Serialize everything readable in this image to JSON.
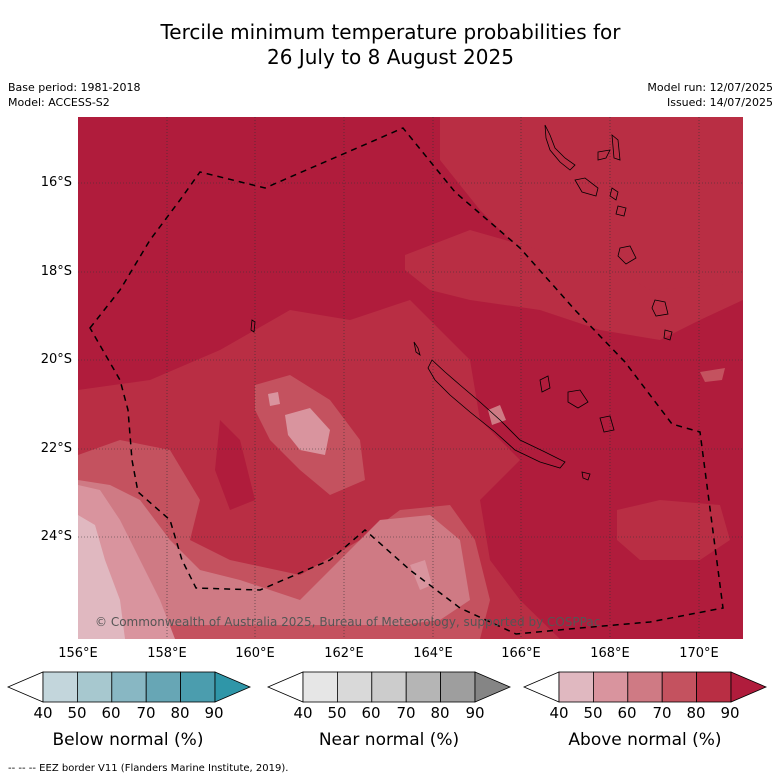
{
  "title_line1": "Tercile minimum temperature probabilities for",
  "title_line2": "26 July to 8 August 2025",
  "base_period": "Base period: 1981-2018",
  "model": "Model: ACCESS-S2",
  "model_run": "Model run: 12/07/2025",
  "issued": "Issued: 14/07/2025",
  "copyright": "© Commonwealth of Australia 2025, Bureau of Meteorology, supported by COSPPac",
  "lat_labels": [
    "16°S",
    "18°S",
    "20°S",
    "22°S",
    "24°S"
  ],
  "lon_labels": [
    "156°E",
    "158°E",
    "160°E",
    "162°E",
    "164°E",
    "166°E",
    "168°E",
    "170°E"
  ],
  "colorbars": [
    {
      "title": "Below normal (%)",
      "ticks": [
        "40",
        "50",
        "60",
        "70",
        "80",
        "90"
      ],
      "colors": [
        "#c3d6dc",
        "#a7c8cf",
        "#88b7c3",
        "#67a6b5",
        "#4b9dae",
        "#2f96a8"
      ]
    },
    {
      "title": "Near normal (%)",
      "ticks": [
        "40",
        "50",
        "60",
        "70",
        "80",
        "90"
      ],
      "colors": [
        "#e6e6e6",
        "#d9d9d9",
        "#cccccc",
        "#b5b5b5",
        "#9e9e9e",
        "#858585"
      ]
    },
    {
      "title": "Above normal (%)",
      "ticks": [
        "40",
        "50",
        "60",
        "70",
        "80",
        "90"
      ],
      "colors": [
        "#e0b8c0",
        "#d9949e",
        "#cf7a84",
        "#c4525f",
        "#b92e44",
        "#b01c3c"
      ]
    }
  ],
  "footer": "--  --  -- EEZ border V11 (Flanders Marine Institute, 2019).",
  "colors": {
    "dominant_fill": "#b01c3c",
    "eez_line": "#000000"
  }
}
